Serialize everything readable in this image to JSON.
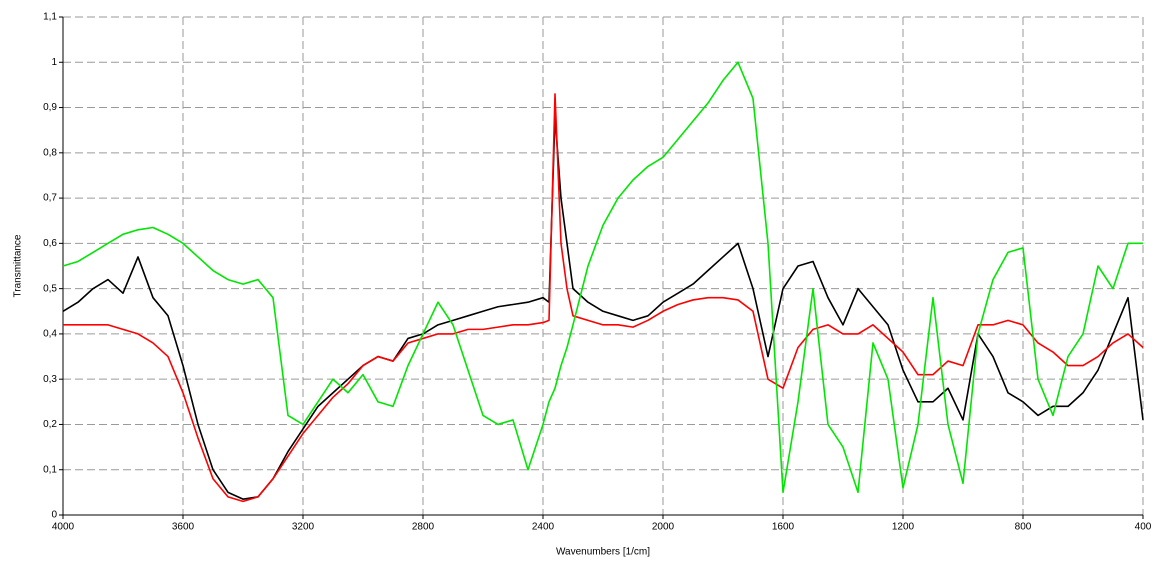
{
  "chart_data": {
    "type": "line",
    "xlabel": "Wavenumbers [1/cm]",
    "ylabel": "Transmittance",
    "x": [
      4000,
      3950,
      3900,
      3850,
      3800,
      3750,
      3700,
      3650,
      3600,
      3550,
      3500,
      3450,
      3400,
      3350,
      3300,
      3250,
      3200,
      3150,
      3100,
      3050,
      3000,
      2950,
      2900,
      2850,
      2800,
      2750,
      2700,
      2650,
      2600,
      2550,
      2500,
      2450,
      2400,
      2380,
      2360,
      2340,
      2320,
      2300,
      2250,
      2200,
      2150,
      2100,
      2050,
      2000,
      1950,
      1900,
      1850,
      1800,
      1750,
      1700,
      1650,
      1600,
      1550,
      1500,
      1450,
      1400,
      1350,
      1300,
      1250,
      1200,
      1150,
      1100,
      1050,
      1000,
      950,
      900,
      850,
      800,
      750,
      700,
      650,
      600,
      550,
      500,
      450,
      400
    ],
    "series": [
      {
        "color": "#000000",
        "values": [
          0.45,
          0.47,
          0.5,
          0.52,
          0.49,
          0.57,
          0.48,
          0.44,
          0.33,
          0.2,
          0.1,
          0.05,
          0.035,
          0.04,
          0.08,
          0.14,
          0.19,
          0.24,
          0.27,
          0.3,
          0.33,
          0.35,
          0.34,
          0.39,
          0.4,
          0.42,
          0.43,
          0.44,
          0.45,
          0.46,
          0.465,
          0.47,
          0.48,
          0.47,
          0.88,
          0.7,
          0.6,
          0.5,
          0.47,
          0.45,
          0.44,
          0.43,
          0.44,
          0.47,
          0.49,
          0.51,
          0.54,
          0.57,
          0.6,
          0.5,
          0.35,
          0.5,
          0.55,
          0.56,
          0.48,
          0.42,
          0.5,
          0.46,
          0.42,
          0.32,
          0.25,
          0.25,
          0.28,
          0.21,
          0.4,
          0.35,
          0.27,
          0.25,
          0.22,
          0.24,
          0.24,
          0.27,
          0.32,
          0.4,
          0.48,
          0.21
        ]
      },
      {
        "color": "#ff0000",
        "values": [
          0.42,
          0.42,
          0.42,
          0.42,
          0.41,
          0.4,
          0.38,
          0.35,
          0.27,
          0.17,
          0.08,
          0.04,
          0.03,
          0.04,
          0.08,
          0.13,
          0.18,
          0.22,
          0.26,
          0.29,
          0.33,
          0.35,
          0.34,
          0.38,
          0.39,
          0.4,
          0.4,
          0.41,
          0.41,
          0.415,
          0.42,
          0.42,
          0.425,
          0.43,
          0.93,
          0.6,
          0.5,
          0.44,
          0.43,
          0.42,
          0.42,
          0.415,
          0.43,
          0.45,
          0.465,
          0.475,
          0.48,
          0.48,
          0.475,
          0.45,
          0.3,
          0.28,
          0.37,
          0.41,
          0.42,
          0.4,
          0.4,
          0.42,
          0.39,
          0.36,
          0.31,
          0.31,
          0.34,
          0.33,
          0.42,
          0.42,
          0.43,
          0.42,
          0.38,
          0.36,
          0.33,
          0.33,
          0.35,
          0.38,
          0.4,
          0.37
        ]
      },
      {
        "color": "#00e600",
        "values": [
          0.55,
          0.56,
          0.58,
          0.6,
          0.62,
          0.63,
          0.635,
          0.62,
          0.6,
          0.57,
          0.54,
          0.52,
          0.51,
          0.52,
          0.48,
          0.22,
          0.2,
          0.25,
          0.3,
          0.27,
          0.31,
          0.25,
          0.24,
          0.33,
          0.4,
          0.47,
          0.42,
          0.32,
          0.22,
          0.2,
          0.21,
          0.1,
          0.2,
          0.25,
          0.28,
          0.33,
          0.37,
          0.42,
          0.55,
          0.64,
          0.7,
          0.74,
          0.77,
          0.79,
          0.83,
          0.87,
          0.91,
          0.96,
          1.0,
          0.92,
          0.6,
          0.05,
          0.25,
          0.5,
          0.2,
          0.15,
          0.05,
          0.38,
          0.3,
          0.06,
          0.2,
          0.48,
          0.2,
          0.07,
          0.4,
          0.52,
          0.58,
          0.59,
          0.3,
          0.22,
          0.35,
          0.4,
          0.55,
          0.5,
          0.6,
          0.6
        ]
      }
    ],
    "xlim": [
      4000,
      400
    ],
    "xticks": [
      4000,
      3600,
      3200,
      2800,
      2400,
      2000,
      1600,
      1200,
      800,
      400
    ],
    "ylim": [
      0,
      1.1
    ],
    "yticks": [
      0,
      {
        "value": 0.1,
        "label": "0,1"
      },
      {
        "value": 0.2,
        "label": "0,2"
      },
      {
        "value": 0.3,
        "label": "0,3"
      },
      {
        "value": 0.4,
        "label": "0,4"
      },
      {
        "value": 0.5,
        "label": "0,5"
      },
      {
        "value": 0.6,
        "label": "0,6"
      },
      {
        "value": 0.7,
        "label": "0,7"
      },
      {
        "value": 0.8,
        "label": "0,8"
      },
      {
        "value": 0.9,
        "label": "0,9"
      },
      1,
      {
        "value": 1.1,
        "label": "1,1"
      }
    ],
    "grid": true
  }
}
